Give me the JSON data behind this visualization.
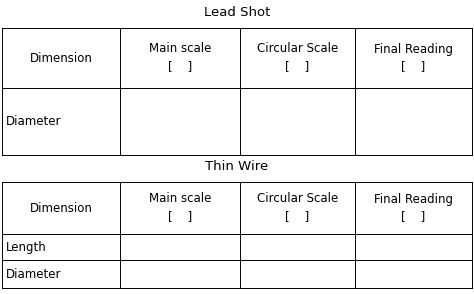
{
  "title1": "Lead Shot",
  "title2": "Thin Wire",
  "col_headers_line1": [
    "Dimension",
    "Main scale",
    "Circular Scale",
    "Final Reading"
  ],
  "col_headers_line2": [
    "",
    "[    ]",
    "[    ]",
    "[    ]"
  ],
  "table1_rows": [
    "Diameter"
  ],
  "table2_rows": [
    "Length",
    "Diameter"
  ],
  "bg_color": "#ffffff",
  "text_color": "#000000",
  "font_size": 8.5,
  "title_font_size": 9.5,
  "fig_width": 4.74,
  "fig_height": 2.94,
  "dpi": 100
}
